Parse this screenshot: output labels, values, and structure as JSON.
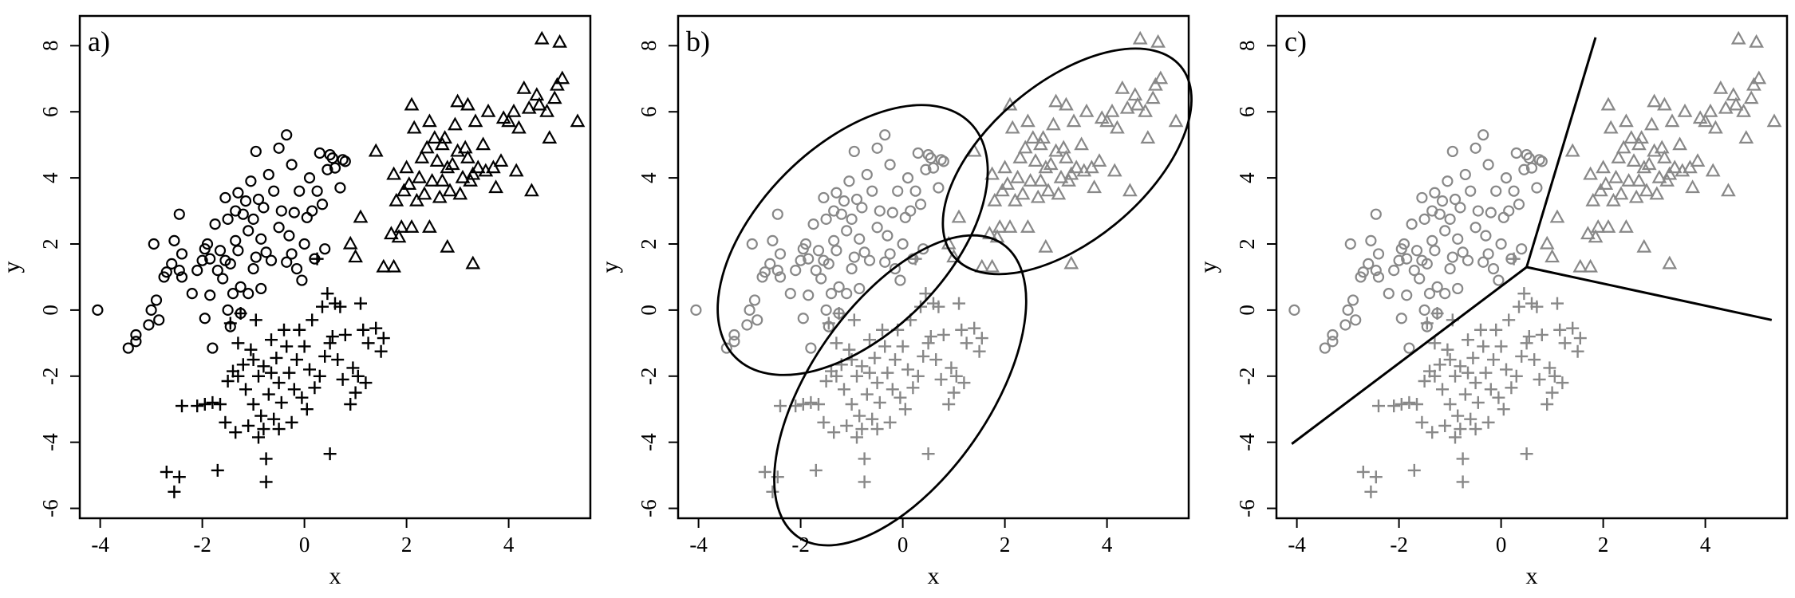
{
  "chart_data": [
    {
      "type": "scatter",
      "panel_label": "a)",
      "xlabel": "x",
      "ylabel": "y",
      "xlim": [
        -4.4,
        5.6
      ],
      "ylim": [
        -6.3,
        8.9
      ],
      "xticks": [
        -4,
        -2,
        0,
        2,
        4
      ],
      "yticks": [
        -6,
        -4,
        -2,
        0,
        2,
        4,
        6,
        8
      ],
      "grid": false,
      "point_color": "#000000",
      "series": [
        {
          "marker": "circle",
          "points": [
            [
              -4.05,
              0.0
            ],
            [
              -3.45,
              -1.15
            ],
            [
              -3.3,
              -0.95
            ],
            [
              -3.3,
              -0.75
            ],
            [
              -3.05,
              -0.45
            ],
            [
              -3.0,
              0.0
            ],
            [
              -2.9,
              0.3
            ],
            [
              -2.95,
              2.0
            ],
            [
              -2.85,
              -0.3
            ],
            [
              -2.75,
              1.0
            ],
            [
              -2.7,
              1.15
            ],
            [
              -2.6,
              1.4
            ],
            [
              -2.55,
              2.1
            ],
            [
              -2.45,
              1.2
            ],
            [
              -2.45,
              2.9
            ],
            [
              -2.4,
              1.0
            ],
            [
              -2.4,
              1.7
            ],
            [
              -2.2,
              0.5
            ],
            [
              -2.1,
              1.2
            ],
            [
              -2.0,
              1.5
            ],
            [
              -1.95,
              1.85
            ],
            [
              -1.95,
              -0.25
            ],
            [
              -1.9,
              2.0
            ],
            [
              -1.85,
              1.55
            ],
            [
              -1.85,
              0.45
            ],
            [
              -1.8,
              -1.15
            ],
            [
              -1.75,
              2.6
            ],
            [
              -1.7,
              1.2
            ],
            [
              -1.65,
              1.8
            ],
            [
              -1.6,
              0.95
            ],
            [
              -1.55,
              3.4
            ],
            [
              -1.55,
              1.5
            ],
            [
              -1.5,
              2.75
            ],
            [
              -1.5,
              0.0
            ],
            [
              -1.45,
              -0.5
            ],
            [
              -1.45,
              1.4
            ],
            [
              -1.4,
              0.5
            ],
            [
              -1.35,
              3.0
            ],
            [
              -1.35,
              2.1
            ],
            [
              -1.3,
              1.8
            ],
            [
              -1.3,
              3.55
            ],
            [
              -1.25,
              0.7
            ],
            [
              -1.25,
              -0.1
            ],
            [
              -1.2,
              2.9
            ],
            [
              -1.15,
              3.3
            ],
            [
              -1.1,
              0.5
            ],
            [
              -1.1,
              2.4
            ],
            [
              -1.05,
              3.9
            ],
            [
              -1.0,
              1.25
            ],
            [
              -1.0,
              2.75
            ],
            [
              -0.95,
              1.6
            ],
            [
              -0.95,
              4.8
            ],
            [
              -0.9,
              3.35
            ],
            [
              -0.85,
              0.65
            ],
            [
              -0.85,
              2.15
            ],
            [
              -0.8,
              3.1
            ],
            [
              -0.75,
              1.75
            ],
            [
              -0.7,
              4.1
            ],
            [
              -0.65,
              1.5
            ],
            [
              -0.6,
              3.6
            ],
            [
              -0.5,
              2.5
            ],
            [
              -0.5,
              4.9
            ],
            [
              -0.45,
              3.0
            ],
            [
              -0.35,
              1.45
            ],
            [
              -0.35,
              5.3
            ],
            [
              -0.3,
              2.25
            ],
            [
              -0.25,
              1.7
            ],
            [
              -0.25,
              4.4
            ],
            [
              -0.2,
              2.95
            ],
            [
              -0.15,
              1.25
            ],
            [
              -0.1,
              3.6
            ],
            [
              -0.05,
              0.9
            ],
            [
              0.0,
              2.0
            ],
            [
              0.05,
              2.8
            ],
            [
              0.1,
              4.0
            ],
            [
              0.15,
              3.0
            ],
            [
              0.2,
              1.55
            ],
            [
              0.25,
              3.6
            ],
            [
              0.3,
              4.75
            ],
            [
              0.35,
              3.2
            ],
            [
              0.4,
              1.85
            ],
            [
              0.45,
              4.25
            ],
            [
              0.5,
              4.7
            ],
            [
              0.55,
              4.6
            ],
            [
              0.6,
              4.3
            ],
            [
              0.7,
              3.7
            ],
            [
              0.75,
              4.55
            ],
            [
              0.8,
              4.5
            ]
          ]
        },
        {
          "marker": "triangle",
          "points": [
            [
              0.9,
              2.0
            ],
            [
              1.0,
              1.6
            ],
            [
              1.1,
              2.8
            ],
            [
              1.4,
              4.8
            ],
            [
              1.55,
              1.3
            ],
            [
              1.75,
              1.3
            ],
            [
              1.7,
              2.3
            ],
            [
              1.75,
              4.1
            ],
            [
              1.8,
              3.3
            ],
            [
              1.85,
              2.2
            ],
            [
              1.9,
              2.5
            ],
            [
              1.95,
              3.6
            ],
            [
              2.0,
              4.3
            ],
            [
              2.05,
              3.8
            ],
            [
              2.1,
              2.5
            ],
            [
              2.1,
              6.2
            ],
            [
              2.15,
              5.5
            ],
            [
              2.2,
              3.3
            ],
            [
              2.25,
              4.0
            ],
            [
              2.3,
              4.6
            ],
            [
              2.35,
              3.5
            ],
            [
              2.4,
              4.9
            ],
            [
              2.45,
              2.5
            ],
            [
              2.45,
              5.7
            ],
            [
              2.5,
              3.9
            ],
            [
              2.55,
              5.2
            ],
            [
              2.6,
              4.5
            ],
            [
              2.65,
              3.4
            ],
            [
              2.7,
              3.9
            ],
            [
              2.7,
              5.0
            ],
            [
              2.75,
              5.2
            ],
            [
              2.8,
              4.3
            ],
            [
              2.8,
              1.9
            ],
            [
              2.85,
              3.6
            ],
            [
              2.9,
              4.4
            ],
            [
              2.95,
              5.6
            ],
            [
              3.0,
              4.8
            ],
            [
              3.0,
              6.3
            ],
            [
              3.05,
              3.5
            ],
            [
              3.1,
              4.0
            ],
            [
              3.15,
              4.9
            ],
            [
              3.2,
              4.6
            ],
            [
              3.2,
              6.2
            ],
            [
              3.25,
              3.9
            ],
            [
              3.3,
              1.4
            ],
            [
              3.3,
              4.1
            ],
            [
              3.35,
              5.7
            ],
            [
              3.4,
              4.3
            ],
            [
              3.5,
              5.0
            ],
            [
              3.55,
              4.2
            ],
            [
              3.6,
              6.0
            ],
            [
              3.7,
              4.3
            ],
            [
              3.75,
              3.7
            ],
            [
              3.85,
              4.5
            ],
            [
              3.9,
              5.8
            ],
            [
              4.0,
              5.7
            ],
            [
              4.1,
              6.0
            ],
            [
              4.15,
              4.2
            ],
            [
              4.2,
              5.5
            ],
            [
              4.3,
              6.7
            ],
            [
              4.4,
              6.1
            ],
            [
              4.45,
              3.6
            ],
            [
              4.55,
              6.5
            ],
            [
              4.6,
              6.2
            ],
            [
              4.65,
              8.2
            ],
            [
              4.75,
              6.0
            ],
            [
              4.8,
              5.2
            ],
            [
              4.9,
              6.4
            ],
            [
              4.95,
              6.8
            ],
            [
              5.0,
              8.1
            ],
            [
              5.05,
              7.0
            ],
            [
              5.35,
              5.7
            ]
          ]
        },
        {
          "marker": "plus",
          "points": [
            [
              -2.7,
              -4.9
            ],
            [
              -2.55,
              -5.5
            ],
            [
              -2.45,
              -5.05
            ],
            [
              -2.4,
              -2.9
            ],
            [
              -2.1,
              -2.9
            ],
            [
              -1.95,
              -2.85
            ],
            [
              -1.8,
              -2.8
            ],
            [
              -1.7,
              -4.85
            ],
            [
              -1.65,
              -2.85
            ],
            [
              -1.55,
              -3.4
            ],
            [
              -1.5,
              -2.15
            ],
            [
              -1.45,
              -0.4
            ],
            [
              -1.4,
              -1.85
            ],
            [
              -1.35,
              -3.7
            ],
            [
              -1.3,
              -2.0
            ],
            [
              -1.3,
              -1.0
            ],
            [
              -1.25,
              -0.1
            ],
            [
              -1.2,
              -1.65
            ],
            [
              -1.15,
              -2.4
            ],
            [
              -1.1,
              -3.5
            ],
            [
              -1.05,
              -1.2
            ],
            [
              -1.0,
              -1.5
            ],
            [
              -1.0,
              -2.85
            ],
            [
              -0.95,
              -0.3
            ],
            [
              -0.9,
              -2.0
            ],
            [
              -0.9,
              -3.85
            ],
            [
              -0.85,
              -3.2
            ],
            [
              -0.8,
              -1.7
            ],
            [
              -0.8,
              -3.6
            ],
            [
              -0.75,
              -4.5
            ],
            [
              -0.75,
              -5.2
            ],
            [
              -0.7,
              -2.55
            ],
            [
              -0.65,
              -0.9
            ],
            [
              -0.65,
              -1.9
            ],
            [
              -0.6,
              -3.3
            ],
            [
              -0.55,
              -1.45
            ],
            [
              -0.5,
              -2.2
            ],
            [
              -0.5,
              -3.6
            ],
            [
              -0.45,
              -2.8
            ],
            [
              -0.4,
              -0.6
            ],
            [
              -0.35,
              -1.1
            ],
            [
              -0.3,
              -1.9
            ],
            [
              -0.25,
              -3.4
            ],
            [
              -0.2,
              -2.4
            ],
            [
              -0.15,
              -1.5
            ],
            [
              -0.1,
              -0.6
            ],
            [
              -0.05,
              -2.65
            ],
            [
              0.0,
              -1.1
            ],
            [
              0.05,
              -3.0
            ],
            [
              0.1,
              -1.8
            ],
            [
              0.15,
              -0.3
            ],
            [
              0.2,
              -2.35
            ],
            [
              0.25,
              1.55
            ],
            [
              0.3,
              -2.0
            ],
            [
              0.35,
              0.1
            ],
            [
              0.4,
              -1.4
            ],
            [
              0.45,
              0.5
            ],
            [
              0.5,
              -1.0
            ],
            [
              0.5,
              -4.35
            ],
            [
              0.55,
              -0.8
            ],
            [
              0.6,
              0.2
            ],
            [
              0.65,
              -1.5
            ],
            [
              0.7,
              0.1
            ],
            [
              0.75,
              -2.1
            ],
            [
              0.8,
              -0.75
            ],
            [
              0.9,
              -2.85
            ],
            [
              0.95,
              -1.75
            ],
            [
              1.0,
              -2.5
            ],
            [
              1.05,
              -2.0
            ],
            [
              1.1,
              0.2
            ],
            [
              1.15,
              -0.6
            ],
            [
              1.2,
              -2.2
            ],
            [
              1.25,
              -1.0
            ],
            [
              1.4,
              -0.55
            ],
            [
              1.5,
              -1.25
            ],
            [
              1.55,
              -0.85
            ]
          ]
        }
      ]
    },
    {
      "type": "scatter",
      "panel_label": "b)",
      "xlabel": "x",
      "ylabel": "y",
      "xlim": [
        -4.4,
        5.6
      ],
      "ylim": [
        -6.3,
        8.9
      ],
      "xticks": [
        -4,
        -2,
        0,
        2,
        4
      ],
      "yticks": [
        -6,
        -4,
        -2,
        0,
        2,
        4,
        6,
        8
      ],
      "grid": false,
      "point_color": "#888888",
      "same_points_as_panel": "a)",
      "ellipses": [
        {
          "cx": -0.98,
          "cy": 2.12,
          "rx": 3.25,
          "ry": 1.85,
          "angle_deg": 45
        },
        {
          "cx": 3.22,
          "cy": 4.5,
          "rx": 2.9,
          "ry": 1.55,
          "angle_deg": 40
        },
        {
          "cx": -0.05,
          "cy": -2.43,
          "rx": 3.5,
          "ry": 1.75,
          "angle_deg": 55
        }
      ]
    },
    {
      "type": "scatter",
      "panel_label": "c)",
      "xlabel": "x",
      "ylabel": "y",
      "xlim": [
        -4.4,
        5.6
      ],
      "ylim": [
        -6.3,
        8.9
      ],
      "xticks": [
        -4,
        -2,
        0,
        2,
        4
      ],
      "yticks": [
        -6,
        -4,
        -2,
        0,
        2,
        4,
        6,
        8
      ],
      "grid": false,
      "point_color": "#888888",
      "same_points_as_panel": "a)",
      "boundary_lines": [
        [
          [
            0.5,
            1.3
          ],
          [
            -4.1,
            -4.05
          ]
        ],
        [
          [
            0.5,
            1.3
          ],
          [
            1.85,
            8.25
          ]
        ],
        [
          [
            0.5,
            1.3
          ],
          [
            5.3,
            -0.3
          ]
        ]
      ]
    }
  ]
}
